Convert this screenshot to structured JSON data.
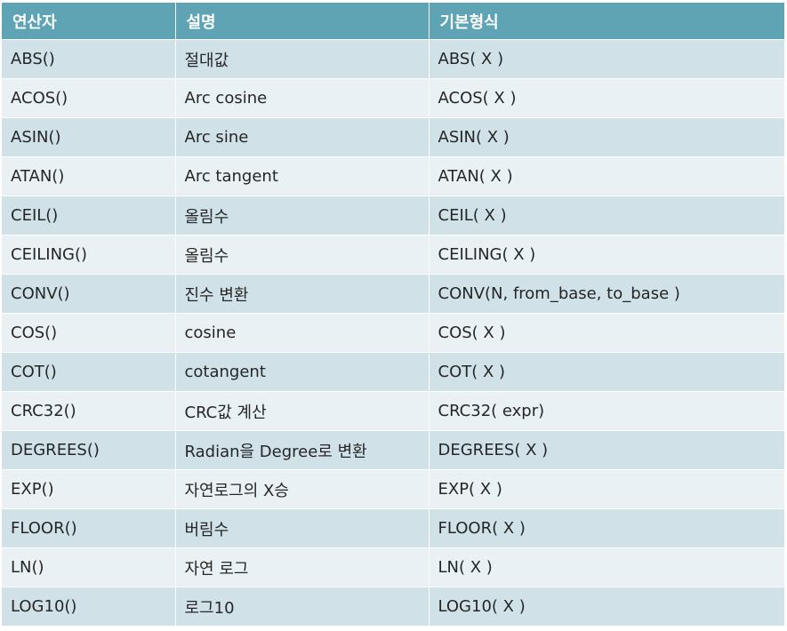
{
  "table": {
    "headers": [
      "연산자",
      "설명",
      "기본형식"
    ],
    "rows": [
      [
        "ABS()",
        "절대값",
        "ABS( X )"
      ],
      [
        "ACOS()",
        "Arc cosine",
        "ACOS( X )"
      ],
      [
        "ASIN()",
        "Arc sine",
        "ASIN( X )"
      ],
      [
        "ATAN()",
        "Arc tangent",
        "ATAN( X )"
      ],
      [
        "CEIL()",
        "올림수",
        "CEIL( X )"
      ],
      [
        "CEILING()",
        "올림수",
        "CEILING( X )"
      ],
      [
        "CONV()",
        "진수 변환",
        "CONV(N, from_base, to_base )"
      ],
      [
        "COS()",
        "cosine",
        "COS( X )"
      ],
      [
        "COT()",
        "cotangent",
        "COT( X )"
      ],
      [
        "CRC32()",
        "CRC값 계산",
        "CRC32( expr)"
      ],
      [
        "DEGREES()",
        "Radian을 Degree로 변환",
        "DEGREES( X )"
      ],
      [
        "EXP()",
        "자연로그의 X승",
        "EXP( X )"
      ],
      [
        "FLOOR()",
        "버림수",
        "FLOOR( X )"
      ],
      [
        "LN()",
        "자연 로그",
        "LN( X )"
      ],
      [
        "LOG10()",
        "로그10",
        "LOG10( X )"
      ]
    ]
  },
  "colors": {
    "header_bg": "#5fa4b5",
    "row_odd_bg": "#d0e1e8",
    "row_even_bg": "#e9f1f4"
  }
}
